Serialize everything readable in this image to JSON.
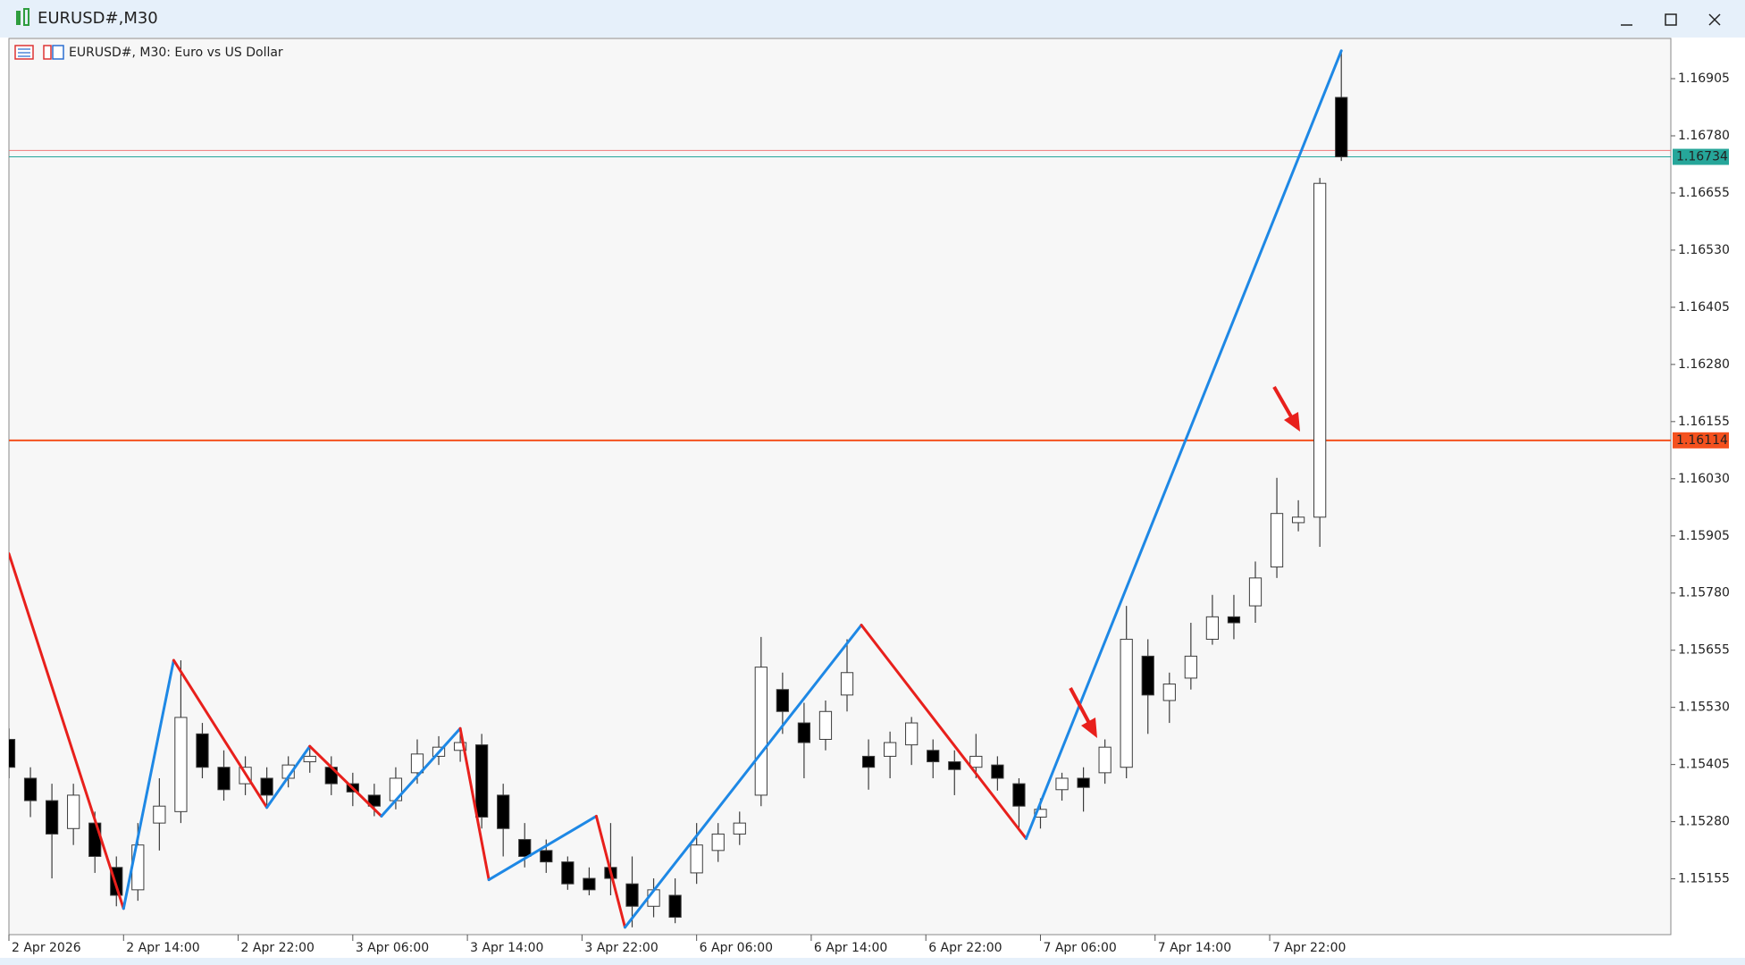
{
  "window": {
    "title": "EURUSD#,M30"
  },
  "chart_data": {
    "type": "candlestick",
    "title": "EURUSD#, M30:  Euro vs US Dollar",
    "x": [
      0,
      3,
      6,
      9,
      12,
      15,
      18,
      21,
      24,
      27,
      30,
      33,
      36,
      39,
      42,
      45,
      48,
      51,
      54,
      57,
      60,
      63,
      66,
      69,
      72,
      75,
      78,
      81,
      84,
      87,
      90,
      93,
      96,
      99,
      102,
      105,
      108,
      111,
      114,
      117,
      120,
      123,
      126,
      129,
      132,
      135,
      138,
      141,
      144,
      147,
      150,
      153,
      156,
      159,
      162,
      165,
      168,
      171,
      174,
      177,
      180,
      183,
      186
    ],
    "open": [
      1.1546,
      1.15375,
      1.15326,
      1.15265,
      1.15277,
      1.1518,
      1.15131,
      1.15277,
      1.15302,
      1.15472,
      1.15399,
      1.15363,
      1.15375,
      1.15375,
      1.15411,
      1.15399,
      1.15363,
      1.15338,
      1.15326,
      1.15387,
      1.15423,
      1.15436,
      1.15448,
      1.15338,
      1.15241,
      1.15217,
      1.15192,
      1.15156,
      1.1518,
      1.15144,
      1.15095,
      1.15119,
      1.15168,
      1.15217,
      1.15253,
      1.15338,
      1.15569,
      1.15496,
      1.1546,
      1.15557,
      1.15423,
      1.15423,
      1.15448,
      1.15436,
      1.15411,
      1.15399,
      1.15404,
      1.15363,
      1.1529,
      1.1535,
      1.15375,
      1.15387,
      1.15399,
      1.15642,
      1.15545,
      1.15594,
      1.15679,
      1.15728,
      1.15752,
      1.15837,
      1.15934,
      1.15946,
      1.16864
    ],
    "high": [
      1.15484,
      1.15399,
      1.15363,
      1.15363,
      1.15302,
      1.15204,
      1.15277,
      1.15375,
      1.15633,
      1.15496,
      1.15436,
      1.15423,
      1.15399,
      1.15423,
      1.15445,
      1.15423,
      1.15387,
      1.15363,
      1.15399,
      1.1546,
      1.15467,
      1.15484,
      1.15472,
      1.15363,
      1.15277,
      1.15241,
      1.15204,
      1.1518,
      1.15277,
      1.15204,
      1.15156,
      1.15156,
      1.15277,
      1.15277,
      1.15302,
      1.15684,
      1.15606,
      1.1554,
      1.15545,
      1.15679,
      1.1546,
      1.15477,
      1.15509,
      1.1546,
      1.15436,
      1.15472,
      1.15423,
      1.15375,
      1.15331,
      1.15387,
      1.15399,
      1.1546,
      1.15752,
      1.15679,
      1.15606,
      1.15715,
      1.15776,
      1.15776,
      1.15849,
      1.16032,
      1.15983,
      1.16688,
      1.16968
    ],
    "low": [
      1.15375,
      1.1529,
      1.15156,
      1.15229,
      1.15168,
      1.15095,
      1.15107,
      1.15217,
      1.15277,
      1.15375,
      1.15326,
      1.15338,
      1.15311,
      1.15355,
      1.15387,
      1.15338,
      1.15314,
      1.15292,
      1.15307,
      1.15363,
      1.15404,
      1.15411,
      1.15265,
      1.15204,
      1.1518,
      1.15168,
      1.15131,
      1.15119,
      1.15119,
      1.15049,
      1.15071,
      1.15058,
      1.15144,
      1.15192,
      1.15229,
      1.15314,
      1.15472,
      1.15375,
      1.15436,
      1.15521,
      1.1535,
      1.15375,
      1.15404,
      1.15375,
      1.15338,
      1.15375,
      1.15348,
      1.15265,
      1.15265,
      1.15326,
      1.15302,
      1.15363,
      1.15375,
      1.15472,
      1.15496,
      1.15569,
      1.15667,
      1.15679,
      1.15715,
      1.15813,
      1.15915,
      1.15881,
      1.16725
    ],
    "close": [
      1.15399,
      1.15326,
      1.15253,
      1.15338,
      1.15204,
      1.15119,
      1.15229,
      1.15314,
      1.15508,
      1.15399,
      1.1535,
      1.15399,
      1.15338,
      1.15404,
      1.15423,
      1.15363,
      1.15345,
      1.15314,
      1.15375,
      1.15428,
      1.15443,
      1.15453,
      1.1529,
      1.15265,
      1.15204,
      1.15192,
      1.15144,
      1.15131,
      1.15156,
      1.15095,
      1.15131,
      1.15071,
      1.15229,
      1.15253,
      1.15277,
      1.15618,
      1.15521,
      1.15453,
      1.15521,
      1.15606,
      1.15399,
      1.15453,
      1.15496,
      1.15411,
      1.15394,
      1.15423,
      1.15375,
      1.15314,
      1.15307,
      1.15375,
      1.15355,
      1.15443,
      1.15679,
      1.15557,
      1.15581,
      1.15642,
      1.15728,
      1.15715,
      1.15813,
      1.15954,
      1.15946,
      1.16676,
      1.16734
    ],
    "bull_color": "#ffffff",
    "bear_color": "#000000",
    "wick_color": "#3c3c3c",
    "xlim": [
      0,
      232
    ],
    "xticks": [
      {
        "value": 0,
        "label": "2 Apr 2026"
      },
      {
        "value": 16,
        "label": "2 Apr 14:00"
      },
      {
        "value": 32,
        "label": "2 Apr 22:00"
      },
      {
        "value": 48,
        "label": "3 Apr 06:00"
      },
      {
        "value": 64,
        "label": "3 Apr 14:00"
      },
      {
        "value": 80,
        "label": "3 Apr 22:00"
      },
      {
        "value": 96,
        "label": "6 Apr 06:00"
      },
      {
        "value": 112,
        "label": "6 Apr 14:00"
      },
      {
        "value": 128,
        "label": "6 Apr 22:00"
      },
      {
        "value": 144,
        "label": "7 Apr 06:00"
      },
      {
        "value": 160,
        "label": "7 Apr 14:00"
      },
      {
        "value": 176,
        "label": "7 Apr 22:00"
      }
    ],
    "ylim": [
      1.15033,
      1.16993
    ],
    "yticks": [
      1.16905,
      {
        "value": 1.1678,
        "label": "1.16780"
      },
      1.16655,
      {
        "value": 1.1653,
        "label": "1.16530"
      },
      1.16405,
      {
        "value": 1.1628,
        "label": "1.16280"
      },
      1.16155,
      {
        "value": 1.1603,
        "label": "1.16030"
      },
      1.15905,
      {
        "value": 1.1578,
        "label": "1.15780"
      },
      1.15655,
      {
        "value": 1.1553,
        "label": "1.15530"
      },
      1.15405,
      {
        "value": 1.1528,
        "label": "1.15280"
      },
      1.15155
    ],
    "zigzag": {
      "x": [
        0,
        16,
        23,
        36,
        42,
        52,
        63,
        67,
        82,
        86,
        119,
        142,
        186
      ],
      "values": [
        1.15866,
        1.1509,
        1.15633,
        1.15311,
        1.15445,
        1.15292,
        1.15484,
        1.15153,
        1.15292,
        1.15049,
        1.1571,
        1.15243,
        1.16966
      ],
      "up_color": "#1e88e5",
      "down_color": "#e8201c"
    },
    "levels": [
      {
        "value": 1.16114,
        "color": "#f4511e"
      },
      {
        "value": 1.16734,
        "color": "#26a69a"
      }
    ],
    "ask_line": {
      "value": 1.16748,
      "color": "#ef7b7b"
    }
  }
}
